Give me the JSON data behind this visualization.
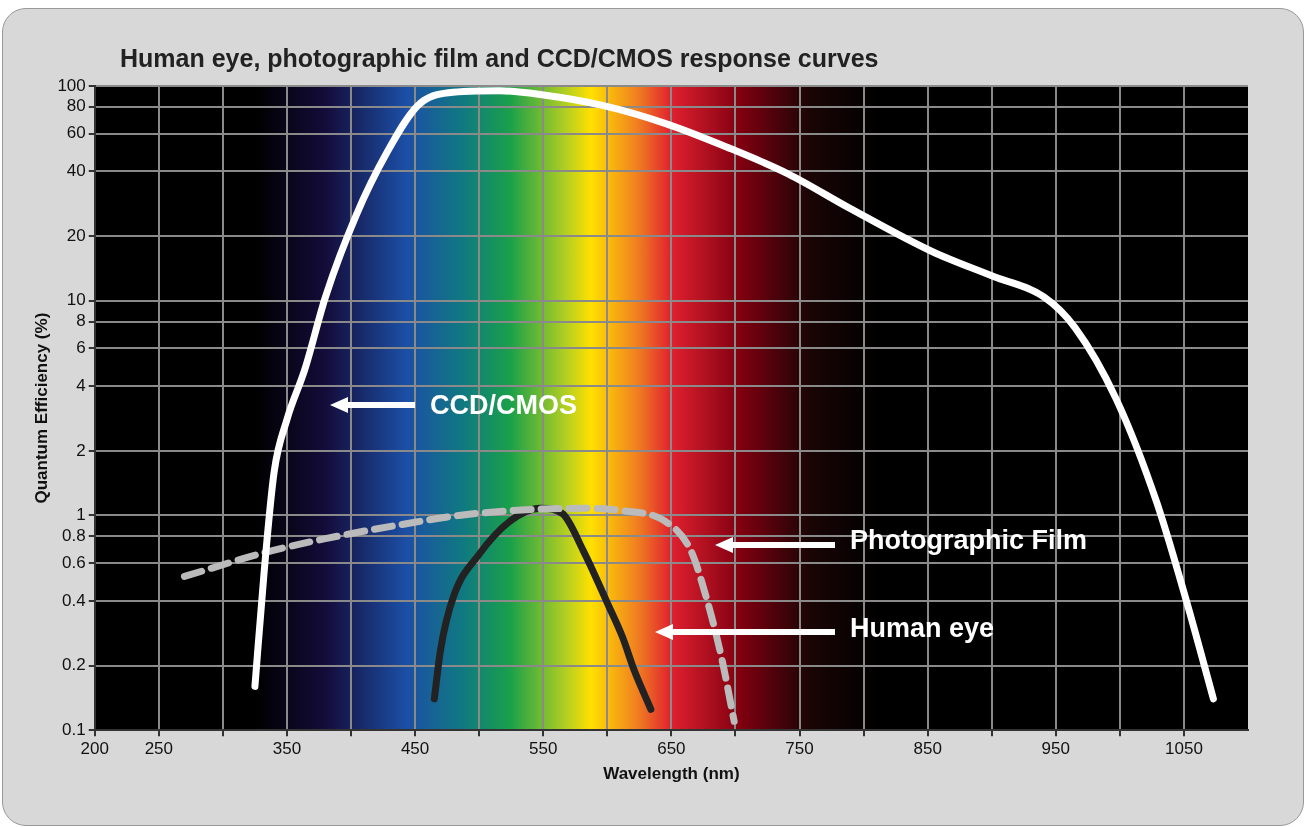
{
  "chart_data": {
    "type": "line",
    "title": "Human eye, photographic film and CCD/CMOS response curves",
    "xlabel": "Wavelength (nm)",
    "ylabel": "Quantum Efficiency (%)",
    "xlim": [
      200,
      1100
    ],
    "xticks": [
      200,
      250,
      {
        "value": 300,
        "label": null
      },
      350,
      {
        "value": 400,
        "label": null
      },
      450,
      {
        "value": 500,
        "label": null
      },
      550,
      {
        "value": 600,
        "label": null
      },
      650,
      {
        "value": 700,
        "label": null
      },
      750,
      {
        "value": 800,
        "label": null
      },
      850,
      {
        "value": 900,
        "label": null
      },
      950,
      {
        "value": 1000,
        "label": null
      },
      1050
    ],
    "ylim": [
      0.1,
      100
    ],
    "yticks": [
      0.1,
      0.2,
      0.4,
      0.6,
      0.8,
      1,
      2,
      4,
      6,
      8,
      10,
      20,
      40,
      60,
      80,
      100
    ],
    "log": "y",
    "grid": true,
    "legend": false,
    "marker": "none",
    "annotations": [
      "CCD/CMOS",
      "Photographic Film",
      "Human eye"
    ],
    "series": [
      {
        "color": "#ffffff",
        "line_style": "solid",
        "x": [
          325,
          332,
          340,
          350,
          364,
          380,
          404,
          428,
          452,
          476,
          516,
          549,
          597,
          645,
          693,
          741,
          789,
          853,
          901,
          941,
          965,
          997,
          1029,
          1053,
          1073
        ],
        "values": [
          0.16,
          0.53,
          1.6,
          2.8,
          4.8,
          10.4,
          25,
          49,
          81,
          93,
          95,
          91,
          81,
          67,
          52,
          39,
          27,
          17,
          13,
          10.4,
          7.5,
          3.5,
          1.14,
          0.38,
          0.14
        ]
      },
      {
        "color": "#bbbbbb",
        "line_style": "dashed",
        "x": [
          270,
          332,
          380,
          436,
          484,
          533,
          581,
          613,
          645,
          665,
          677,
          689,
          699
        ],
        "values": [
          0.52,
          0.67,
          0.78,
          0.9,
          1.0,
          1.06,
          1.08,
          1.05,
          0.94,
          0.69,
          0.42,
          0.22,
          0.11
        ]
      },
      {
        "color": "#222222",
        "line_style": "solid",
        "x": [
          465,
          470,
          480,
          500,
          524,
          548,
          565,
          581,
          601,
          612,
          621,
          634
        ],
        "values": [
          0.14,
          0.24,
          0.42,
          0.66,
          0.94,
          1.08,
          1.02,
          0.69,
          0.38,
          0.27,
          0.19,
          0.125
        ]
      }
    ]
  }
}
